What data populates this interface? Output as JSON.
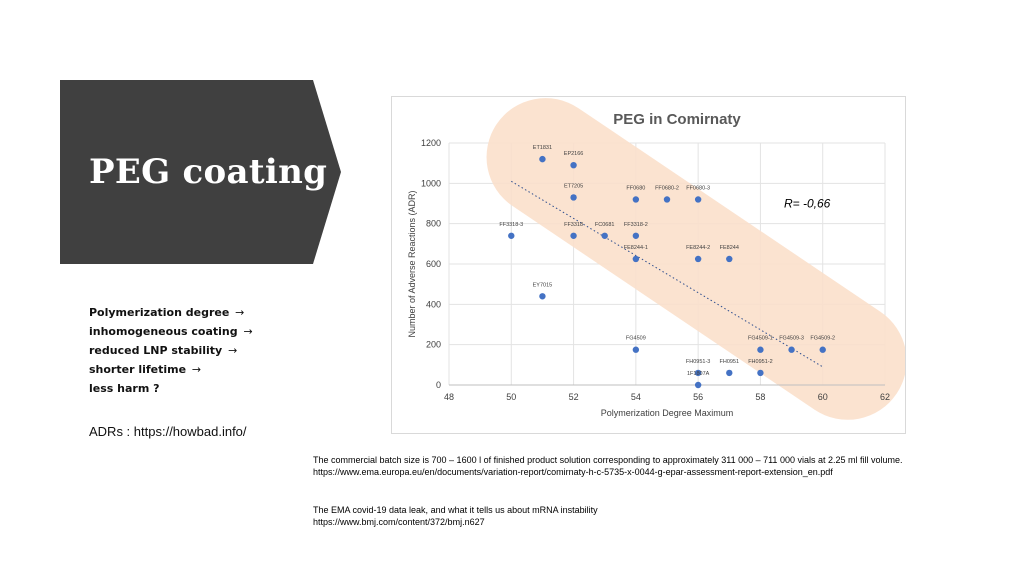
{
  "slide": {
    "title": "PEG coating",
    "bullets": [
      {
        "text": "Polymerization degree",
        "arrow": "→"
      },
      {
        "text": "inhomogeneous coating",
        "arrow": "→"
      },
      {
        "text": "reduced LNP stability",
        "arrow": "→"
      },
      {
        "text": "shorter lifetime",
        "arrow": "→"
      },
      {
        "text": "less harm ?",
        "arrow": ""
      }
    ],
    "adrs_link": "ADRs : https://howbad.info/",
    "footnotes": [
      {
        "line1": "The commercial batch size is 700 – 1600 l of finished product solution corresponding to approximately 311 000 – 711 000 vials at 2.25 ml fill volume.",
        "line2": "https://www.ema.europa.eu/en/documents/variation-report/comirnaty-h-c-5735-x-0044-g-epar-assessment-report-extension_en.pdf"
      },
      {
        "line1": "The EMA covid-19 data leak, and what it tells us about mRNA instability",
        "line2": "https://www.bmj.com/content/372/bmj.n627"
      }
    ],
    "colors": {
      "banner": "#404040",
      "point": "#4472c4",
      "band": "#fbe0cc",
      "trend": "#2f4f8f"
    }
  },
  "chart_data": {
    "type": "scatter",
    "title": "PEG in Comirnaty",
    "xlabel": "Polymerization Degree Maximum",
    "ylabel": "Number of Adverse Reactions (ADR)",
    "xlim": [
      48,
      62
    ],
    "ylim": [
      0,
      1200
    ],
    "xticks": [
      48,
      50,
      52,
      54,
      56,
      58,
      60,
      62
    ],
    "yticks": [
      0,
      200,
      400,
      600,
      800,
      1000,
      1200
    ],
    "grid": true,
    "annotation": "R= -0,66",
    "trendline": {
      "x": [
        50,
        60
      ],
      "y": [
        1010,
        90
      ]
    },
    "points": [
      {
        "x": 51,
        "y": 1120,
        "label": "ET1831"
      },
      {
        "x": 52,
        "y": 1090,
        "label": "EP2166"
      },
      {
        "x": 52,
        "y": 930,
        "label": "ET7205"
      },
      {
        "x": 54,
        "y": 920,
        "label": "FF0680"
      },
      {
        "x": 55,
        "y": 920,
        "label": "FF0680-2"
      },
      {
        "x": 56,
        "y": 920,
        "label": "FF0680-3"
      },
      {
        "x": 50,
        "y": 740,
        "label": "FF3318-3"
      },
      {
        "x": 52,
        "y": 740,
        "label": "FF3318"
      },
      {
        "x": 53,
        "y": 740,
        "label": "FC0681"
      },
      {
        "x": 54,
        "y": 740,
        "label": "FF3318-2"
      },
      {
        "x": 54,
        "y": 625,
        "label": "FE8244-1"
      },
      {
        "x": 56,
        "y": 625,
        "label": "FE8244-2"
      },
      {
        "x": 57,
        "y": 625,
        "label": "FE8244"
      },
      {
        "x": 51,
        "y": 440,
        "label": "EY7015"
      },
      {
        "x": 54,
        "y": 175,
        "label": "FG4509"
      },
      {
        "x": 58,
        "y": 175,
        "label": "FG4509-1"
      },
      {
        "x": 59,
        "y": 175,
        "label": "FG4509-3"
      },
      {
        "x": 60,
        "y": 175,
        "label": "FG4509-2"
      },
      {
        "x": 56,
        "y": 60,
        "label": "FH0951-3"
      },
      {
        "x": 57,
        "y": 60,
        "label": "FH0951"
      },
      {
        "x": 58,
        "y": 60,
        "label": "FH0951-2"
      },
      {
        "x": 56,
        "y": 0,
        "label": "1F1807A"
      }
    ]
  }
}
